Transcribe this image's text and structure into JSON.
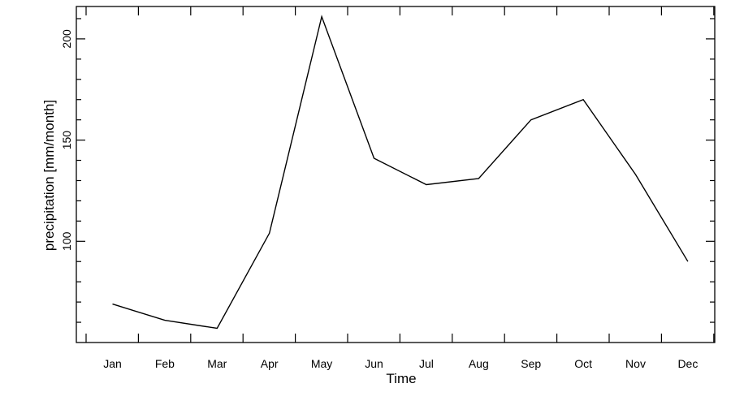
{
  "chart_data": {
    "type": "line",
    "title": "",
    "xlabel": "Time",
    "ylabel": "precipitation [mm/month]",
    "categories": [
      "Jan",
      "Feb",
      "Mar",
      "Apr",
      "May",
      "Jun",
      "Jul",
      "Aug",
      "Sep",
      "Oct",
      "Nov",
      "Dec"
    ],
    "edge_label": "J",
    "series": [
      {
        "values": [
          69,
          61,
          57,
          104,
          211,
          141,
          128,
          131,
          160,
          170,
          133,
          90
        ]
      }
    ],
    "yticks": [
      100,
      150,
      200
    ],
    "ytick_labels": [
      "100",
      "150",
      "200"
    ],
    "ylim": [
      50,
      216
    ],
    "grid": false,
    "legend": "none",
    "line_color": "#000000"
  }
}
